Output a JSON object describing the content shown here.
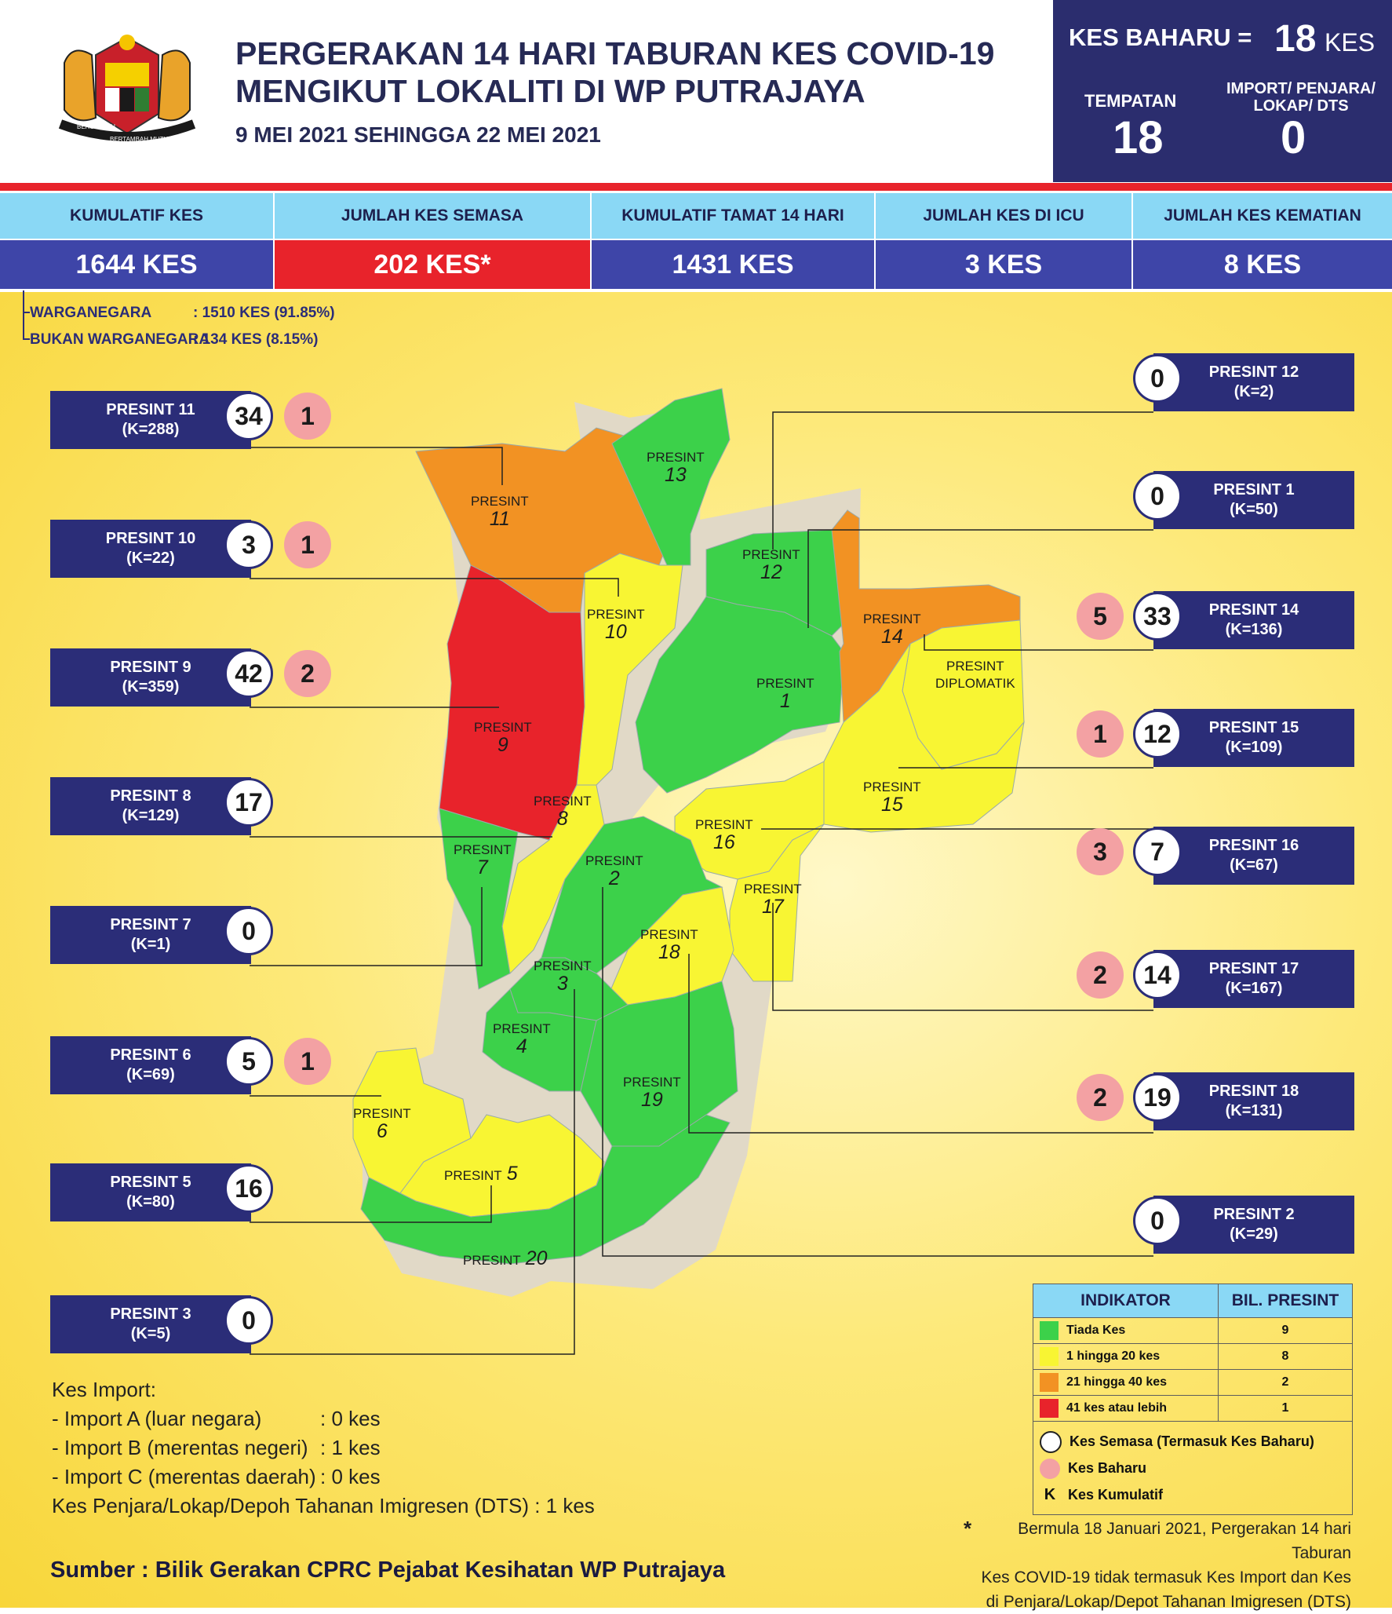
{
  "header": {
    "title_line1": "PERGERAKAN 14 HARI TABURAN KES COVID-19",
    "title_line2": "MENGIKUT LOKALITI DI WP PUTRAJAYA",
    "date_range": "9 MEI 2021 SEHINGGA 22 MEI 2021",
    "crest_motto_left": "BERSEKUTU",
    "crest_motto_bottom": "BERTAMBAH MUTU"
  },
  "new_cases_box": {
    "label": "KES BAHARU =",
    "value": "18",
    "unit": "KES",
    "local_label": "TEMPATAN",
    "local_value": "18",
    "import_label_1": "IMPORT/ PENJARA/",
    "import_label_2": "LOKAP/ DTS",
    "import_value": "0"
  },
  "stats": [
    {
      "label": "KUMULATIF KES",
      "value": "1644 KES"
    },
    {
      "label": "JUMLAH KES SEMASA",
      "value": "202 KES*"
    },
    {
      "label": "KUMULATIF TAMAT 14 HARI",
      "value": "1431 KES"
    },
    {
      "label": "JUMLAH KES DI ICU",
      "value": "3 KES"
    },
    {
      "label": "JUMLAH KES KEMATIAN",
      "value": "8 KES"
    }
  ],
  "citizenship": [
    {
      "label": "WARGANEGARA",
      "value": ": 1510 KES (91.85%)"
    },
    {
      "label": "BUKAN WARGANEGARA",
      "value": ": 134 KES (8.15%)"
    }
  ],
  "left_precincts": [
    {
      "name": "PRESINT 11",
      "k": "(K=288)",
      "active": "34",
      "new": "1"
    },
    {
      "name": "PRESINT 10",
      "k": "(K=22)",
      "active": "3",
      "new": "1"
    },
    {
      "name": "PRESINT 9",
      "k": "(K=359)",
      "active": "42",
      "new": "2"
    },
    {
      "name": "PRESINT 8",
      "k": "(K=129)",
      "active": "17",
      "new": ""
    },
    {
      "name": "PRESINT 7",
      "k": "(K=1)",
      "active": "0",
      "new": ""
    },
    {
      "name": "PRESINT 6",
      "k": "(K=69)",
      "active": "5",
      "new": "1"
    },
    {
      "name": "PRESINT 5",
      "k": "(K=80)",
      "active": "16",
      "new": ""
    },
    {
      "name": "PRESINT 3",
      "k": "(K=5)",
      "active": "0",
      "new": ""
    }
  ],
  "right_precincts": [
    {
      "name": "PRESINT 12",
      "k": "(K=2)",
      "active": "0",
      "new": ""
    },
    {
      "name": "PRESINT 1",
      "k": "(K=50)",
      "active": "0",
      "new": ""
    },
    {
      "name": "PRESINT 14",
      "k": "(K=136)",
      "active": "33",
      "new": "5"
    },
    {
      "name": "PRESINT 15",
      "k": "(K=109)",
      "active": "12",
      "new": "1"
    },
    {
      "name": "PRESINT 16",
      "k": "(K=67)",
      "active": "7",
      "new": "3"
    },
    {
      "name": "PRESINT 17",
      "k": "(K=167)",
      "active": "14",
      "new": "2"
    },
    {
      "name": "PRESINT 18",
      "k": "(K=131)",
      "active": "19",
      "new": "2"
    },
    {
      "name": "PRESINT 2",
      "k": "(K=29)",
      "active": "0",
      "new": ""
    }
  ],
  "map": {
    "word": "PRESINT",
    "diplomatik_1": "PRESINT",
    "diplomatik_2": "DIPLOMATIK",
    "regions": [
      {
        "id": "1",
        "level": "green"
      },
      {
        "id": "2",
        "level": "green"
      },
      {
        "id": "3",
        "level": "green"
      },
      {
        "id": "4",
        "level": "green"
      },
      {
        "id": "5",
        "level": "yellow"
      },
      {
        "id": "6",
        "level": "yellow"
      },
      {
        "id": "7",
        "level": "green"
      },
      {
        "id": "8",
        "level": "yellow"
      },
      {
        "id": "9",
        "level": "red"
      },
      {
        "id": "10",
        "level": "yellow"
      },
      {
        "id": "11",
        "level": "orange"
      },
      {
        "id": "12",
        "level": "green"
      },
      {
        "id": "13",
        "level": "green"
      },
      {
        "id": "14",
        "level": "orange"
      },
      {
        "id": "15",
        "level": "yellow"
      },
      {
        "id": "16",
        "level": "yellow"
      },
      {
        "id": "17",
        "level": "yellow"
      },
      {
        "id": "18",
        "level": "yellow"
      },
      {
        "id": "19",
        "level": "green"
      },
      {
        "id": "20",
        "level": "green"
      }
    ]
  },
  "legend": {
    "col1": "INDIKATOR",
    "col2": "BIL. PRESINT",
    "rows": [
      {
        "label": "Tiada Kes",
        "count": "9",
        "color": "#3cd14a"
      },
      {
        "label": "1 hingga 20 kes",
        "count": "8",
        "color": "#f8f533"
      },
      {
        "label": "21 hingga 40 kes",
        "count": "2",
        "color": "#f29223"
      },
      {
        "label": "41 kes atau lebih",
        "count": "1",
        "color": "#e8232b"
      }
    ],
    "semasa": "Kes Semasa (Termasuk Kes Baharu)",
    "baharu": "Kes Baharu",
    "k_letter": "K",
    "kumulatif": "Kes Kumulatif"
  },
  "imports": {
    "heading": "Kes Import:",
    "lines": [
      {
        "label": "- Import A (luar negara)",
        "value": ": 0 kes"
      },
      {
        "label": "- Import B (merentas negeri)",
        "value": ": 1 kes"
      },
      {
        "label": "- Import C (merentas daerah)",
        "value": ": 0 kes"
      }
    ],
    "dts": "Kes Penjara/Lokap/Depoh Tahanan Imigresen (DTS) : 1 kes"
  },
  "footnote": {
    "star": "*",
    "line1": "Bermula 18 Januari 2021, Pergerakan 14 hari Taburan",
    "line2": "Kes COVID-19 tidak termasuk Kes Import dan Kes",
    "line3": "di Penjara/Lokap/Depot Tahanan Imigresen (DTS)"
  },
  "source": "Sumber : Bilik Gerakan CPRC Pejabat Kesihatan WP Putrajaya",
  "colors": {
    "green": "#3cd14a",
    "yellow": "#f8f533",
    "orange": "#f29223",
    "red": "#e8232b",
    "navy": "#2b2d78",
    "pink": "#f3a1a3"
  }
}
